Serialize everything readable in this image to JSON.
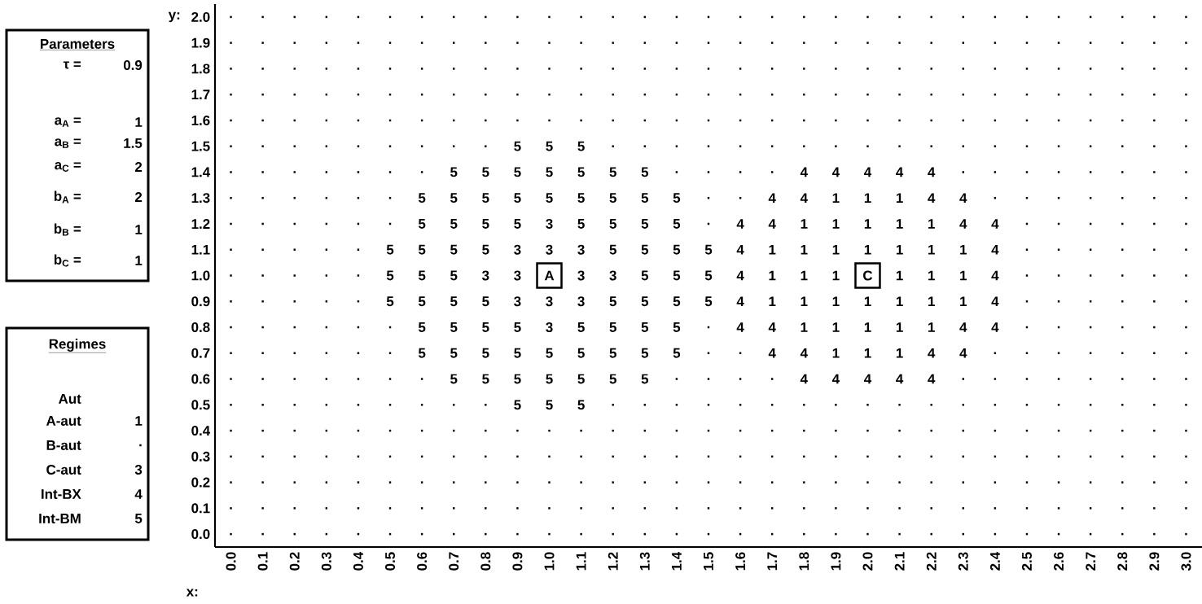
{
  "chart_data": {
    "type": "heatmap",
    "xlabel": "x:",
    "ylabel": "y:",
    "categories": [
      "0.0",
      "0.1",
      "0.2",
      "0.3",
      "0.4",
      "0.5",
      "0.6",
      "0.7",
      "0.8",
      "0.9",
      "1.0",
      "1.1",
      "1.2",
      "1.3",
      "1.4",
      "1.5",
      "1.6",
      "1.7",
      "1.8",
      "1.9",
      "2.0",
      "2.1",
      "2.2",
      "2.3",
      "2.4",
      "2.5",
      "2.6",
      "2.7",
      "2.8",
      "2.9",
      "3.0"
    ],
    "y_categories": [
      "2.0",
      "1.9",
      "1.8",
      "1.7",
      "1.6",
      "1.5",
      "1.4",
      "1.3",
      "1.2",
      "1.1",
      "1.0",
      "0.9",
      "0.8",
      "0.7",
      "0.6",
      "0.5",
      "0.4",
      "0.3",
      "0.2",
      "0.1",
      "0.0"
    ],
    "cells": [
      [
        null,
        null,
        null,
        null,
        null,
        null,
        null,
        null,
        null,
        null,
        null,
        null,
        null,
        null,
        null,
        null,
        null,
        null,
        null,
        null,
        null,
        null,
        null,
        null,
        null,
        null,
        null,
        null,
        null,
        null,
        null
      ],
      [
        null,
        null,
        null,
        null,
        null,
        null,
        null,
        null,
        null,
        null,
        null,
        null,
        null,
        null,
        null,
        null,
        null,
        null,
        null,
        null,
        null,
        null,
        null,
        null,
        null,
        null,
        null,
        null,
        null,
        null,
        null
      ],
      [
        null,
        null,
        null,
        null,
        null,
        null,
        null,
        null,
        null,
        null,
        null,
        null,
        null,
        null,
        null,
        null,
        null,
        null,
        null,
        null,
        null,
        null,
        null,
        null,
        null,
        null,
        null,
        null,
        null,
        null,
        null
      ],
      [
        null,
        null,
        null,
        null,
        null,
        null,
        null,
        null,
        null,
        null,
        null,
        null,
        null,
        null,
        null,
        null,
        null,
        null,
        null,
        null,
        null,
        null,
        null,
        null,
        null,
        null,
        null,
        null,
        null,
        null,
        null
      ],
      [
        null,
        null,
        null,
        null,
        null,
        null,
        null,
        null,
        null,
        null,
        null,
        null,
        null,
        null,
        null,
        null,
        null,
        null,
        null,
        null,
        null,
        null,
        null,
        null,
        null,
        null,
        null,
        null,
        null,
        null,
        null
      ],
      [
        null,
        null,
        null,
        null,
        null,
        null,
        null,
        null,
        null,
        5,
        5,
        5,
        null,
        null,
        null,
        null,
        null,
        null,
        null,
        null,
        null,
        null,
        null,
        null,
        null,
        null,
        null,
        null,
        null,
        null,
        null
      ],
      [
        null,
        null,
        null,
        null,
        null,
        null,
        null,
        5,
        5,
        5,
        5,
        5,
        5,
        5,
        null,
        null,
        null,
        null,
        4,
        4,
        4,
        4,
        4,
        null,
        null,
        null,
        null,
        null,
        null,
        null,
        null
      ],
      [
        null,
        null,
        null,
        null,
        null,
        null,
        5,
        5,
        5,
        5,
        5,
        5,
        5,
        5,
        5,
        null,
        null,
        4,
        4,
        1,
        1,
        1,
        4,
        4,
        null,
        null,
        null,
        null,
        null,
        null,
        null
      ],
      [
        null,
        null,
        null,
        null,
        null,
        null,
        5,
        5,
        5,
        5,
        3,
        5,
        5,
        5,
        5,
        null,
        4,
        4,
        1,
        1,
        1,
        1,
        1,
        4,
        4,
        null,
        null,
        null,
        null,
        null,
        null
      ],
      [
        null,
        null,
        null,
        null,
        null,
        5,
        5,
        5,
        5,
        3,
        3,
        3,
        5,
        5,
        5,
        5,
        4,
        1,
        1,
        1,
        1,
        1,
        1,
        1,
        4,
        null,
        null,
        null,
        null,
        null,
        null
      ],
      [
        null,
        null,
        null,
        null,
        null,
        5,
        5,
        5,
        3,
        3,
        null,
        3,
        3,
        5,
        5,
        5,
        4,
        1,
        1,
        1,
        null,
        1,
        1,
        1,
        4,
        null,
        null,
        null,
        null,
        null,
        null
      ],
      [
        null,
        null,
        null,
        null,
        null,
        5,
        5,
        5,
        5,
        3,
        3,
        3,
        5,
        5,
        5,
        5,
        4,
        1,
        1,
        1,
        1,
        1,
        1,
        1,
        4,
        null,
        null,
        null,
        null,
        null,
        null
      ],
      [
        null,
        null,
        null,
        null,
        null,
        null,
        5,
        5,
        5,
        5,
        3,
        5,
        5,
        5,
        5,
        null,
        4,
        4,
        1,
        1,
        1,
        1,
        1,
        4,
        4,
        null,
        null,
        null,
        null,
        null,
        null
      ],
      [
        null,
        null,
        null,
        null,
        null,
        null,
        5,
        5,
        5,
        5,
        5,
        5,
        5,
        5,
        5,
        null,
        null,
        4,
        4,
        1,
        1,
        1,
        4,
        4,
        null,
        null,
        null,
        null,
        null,
        null,
        null
      ],
      [
        null,
        null,
        null,
        null,
        null,
        null,
        null,
        5,
        5,
        5,
        5,
        5,
        5,
        5,
        null,
        null,
        null,
        null,
        4,
        4,
        4,
        4,
        4,
        null,
        null,
        null,
        null,
        null,
        null,
        null,
        null
      ],
      [
        null,
        null,
        null,
        null,
        null,
        null,
        null,
        null,
        null,
        5,
        5,
        5,
        null,
        null,
        null,
        null,
        null,
        null,
        null,
        null,
        null,
        null,
        null,
        null,
        null,
        null,
        null,
        null,
        null,
        null,
        null
      ],
      [
        null,
        null,
        null,
        null,
        null,
        null,
        null,
        null,
        null,
        null,
        null,
        null,
        null,
        null,
        null,
        null,
        null,
        null,
        null,
        null,
        null,
        null,
        null,
        null,
        null,
        null,
        null,
        null,
        null,
        null,
        null
      ],
      [
        null,
        null,
        null,
        null,
        null,
        null,
        null,
        null,
        null,
        null,
        null,
        null,
        null,
        null,
        null,
        null,
        null,
        null,
        null,
        null,
        null,
        null,
        null,
        null,
        null,
        null,
        null,
        null,
        null,
        null,
        null
      ],
      [
        null,
        null,
        null,
        null,
        null,
        null,
        null,
        null,
        null,
        null,
        null,
        null,
        null,
        null,
        null,
        null,
        null,
        null,
        null,
        null,
        null,
        null,
        null,
        null,
        null,
        null,
        null,
        null,
        null,
        null,
        null
      ],
      [
        null,
        null,
        null,
        null,
        null,
        null,
        null,
        null,
        null,
        null,
        null,
        null,
        null,
        null,
        null,
        null,
        null,
        null,
        null,
        null,
        null,
        null,
        null,
        null,
        null,
        null,
        null,
        null,
        null,
        null,
        null
      ],
      [
        null,
        null,
        null,
        null,
        null,
        null,
        null,
        null,
        null,
        null,
        null,
        null,
        null,
        null,
        null,
        null,
        null,
        null,
        null,
        null,
        null,
        null,
        null,
        null,
        null,
        null,
        null,
        null,
        null,
        null,
        null
      ]
    ],
    "cell_labels": [
      [
        ".",
        ".",
        ".",
        ".",
        ".",
        ".",
        ".",
        ".",
        ".",
        ".",
        ".",
        ".",
        ".",
        ".",
        ".",
        ".",
        ".",
        ".",
        ".",
        ".",
        ".",
        ".",
        ".",
        ".",
        ".",
        ".",
        ".",
        ".",
        ".",
        ".",
        "."
      ],
      [
        ".",
        ".",
        ".",
        ".",
        ".",
        ".",
        ".",
        ".",
        ".",
        ".",
        ".",
        ".",
        ".",
        ".",
        ".",
        ".",
        ".",
        ".",
        ".",
        ".",
        ".",
        ".",
        ".",
        ".",
        ".",
        ".",
        ".",
        ".",
        ".",
        ".",
        "."
      ],
      [
        ".",
        ".",
        ".",
        ".",
        ".",
        ".",
        ".",
        ".",
        ".",
        ".",
        ".",
        ".",
        ".",
        ".",
        ".",
        ".",
        ".",
        ".",
        ".",
        ".",
        ".",
        ".",
        ".",
        ".",
        ".",
        ".",
        ".",
        ".",
        ".",
        ".",
        "."
      ],
      [
        ".",
        ".",
        ".",
        ".",
        ".",
        ".",
        ".",
        ".",
        ".",
        ".",
        ".",
        ".",
        ".",
        ".",
        ".",
        ".",
        ".",
        ".",
        ".",
        ".",
        ".",
        ".",
        ".",
        ".",
        ".",
        ".",
        ".",
        ".",
        ".",
        ".",
        "."
      ],
      [
        ".",
        ".",
        ".",
        ".",
        ".",
        ".",
        ".",
        ".",
        ".",
        ".",
        ".",
        ".",
        ".",
        ".",
        ".",
        ".",
        ".",
        ".",
        ".",
        ".",
        ".",
        ".",
        ".",
        ".",
        ".",
        ".",
        ".",
        ".",
        ".",
        ".",
        "."
      ],
      [
        ".",
        ".",
        ".",
        ".",
        ".",
        ".",
        ".",
        ".",
        ".",
        "5",
        "5",
        "5",
        ".",
        ".",
        ".",
        ".",
        ".",
        ".",
        ".",
        ".",
        ".",
        ".",
        ".",
        ".",
        ".",
        ".",
        ".",
        ".",
        ".",
        ".",
        "."
      ],
      [
        ".",
        ".",
        ".",
        ".",
        ".",
        ".",
        ".",
        "5",
        "5",
        "5",
        "5",
        "5",
        "5",
        "5",
        ".",
        ".",
        ".",
        ".",
        "4",
        "4",
        "4",
        "4",
        "4",
        ".",
        ".",
        ".",
        ".",
        ".",
        ".",
        ".",
        "."
      ],
      [
        ".",
        ".",
        ".",
        ".",
        ".",
        ".",
        "5",
        "5",
        "5",
        "5",
        "5",
        "5",
        "5",
        "5",
        "5",
        ".",
        ".",
        "4",
        "4",
        "1",
        "1",
        "1",
        "4",
        "4",
        ".",
        ".",
        ".",
        ".",
        ".",
        ".",
        "."
      ],
      [
        ".",
        ".",
        ".",
        ".",
        ".",
        ".",
        "5",
        "5",
        "5",
        "5",
        "3",
        "5",
        "5",
        "5",
        "5",
        ".",
        "4",
        "4",
        "1",
        "1",
        "1",
        "1",
        "1",
        "4",
        "4",
        ".",
        ".",
        ".",
        ".",
        ".",
        "."
      ],
      [
        ".",
        ".",
        ".",
        ".",
        ".",
        "5",
        "5",
        "5",
        "5",
        "3",
        "3",
        "3",
        "5",
        "5",
        "5",
        "5",
        "4",
        "1",
        "1",
        "1",
        "1",
        "1",
        "1",
        "1",
        "4",
        ".",
        ".",
        ".",
        ".",
        ".",
        "."
      ],
      [
        ".",
        ".",
        ".",
        ".",
        ".",
        "5",
        "5",
        "5",
        "3",
        "3",
        null,
        "3",
        "3",
        "5",
        "5",
        "5",
        "4",
        "1",
        "1",
        "1",
        null,
        "1",
        "1",
        "1",
        "4",
        ".",
        ".",
        ".",
        ".",
        ".",
        "."
      ],
      [
        ".",
        ".",
        ".",
        ".",
        ".",
        "5",
        "5",
        "5",
        "5",
        "3",
        "3",
        "3",
        "5",
        "5",
        "5",
        "5",
        "4",
        "1",
        "1",
        "1",
        "1",
        "1",
        "1",
        "1",
        "4",
        ".",
        ".",
        ".",
        ".",
        ".",
        "."
      ],
      [
        ".",
        ".",
        ".",
        ".",
        ".",
        ".",
        "5",
        "5",
        "5",
        "5",
        "3",
        "5",
        "5",
        "5",
        "5",
        ".",
        "4",
        "4",
        "1",
        "1",
        "1",
        "1",
        "1",
        "4",
        "4",
        ".",
        ".",
        ".",
        ".",
        ".",
        "."
      ],
      [
        ".",
        ".",
        ".",
        ".",
        ".",
        ".",
        "5",
        "5",
        "5",
        "5",
        "5",
        "5",
        "5",
        "5",
        "5",
        ".",
        ".",
        "4",
        "4",
        "1",
        "1",
        "1",
        "4",
        "4",
        ".",
        ".",
        ".",
        ".",
        ".",
        ".",
        "."
      ],
      [
        ".",
        ".",
        ".",
        ".",
        ".",
        ".",
        ".",
        "5",
        "5",
        "5",
        "5",
        "5",
        "5",
        "5",
        ".",
        ".",
        ".",
        ".",
        "4",
        "4",
        "4",
        "4",
        "4",
        ".",
        ".",
        ".",
        ".",
        ".",
        ".",
        ".",
        "."
      ],
      [
        ".",
        ".",
        ".",
        ".",
        ".",
        ".",
        ".",
        ".",
        ".",
        "5",
        "5",
        "5",
        ".",
        ".",
        ".",
        ".",
        ".",
        ".",
        ".",
        ".",
        ".",
        ".",
        ".",
        ".",
        ".",
        ".",
        ".",
        ".",
        ".",
        ".",
        "."
      ],
      [
        ".",
        ".",
        ".",
        ".",
        ".",
        ".",
        ".",
        ".",
        ".",
        ".",
        ".",
        ".",
        ".",
        ".",
        ".",
        ".",
        ".",
        ".",
        ".",
        ".",
        ".",
        ".",
        ".",
        ".",
        ".",
        ".",
        ".",
        ".",
        ".",
        ".",
        "."
      ],
      [
        ".",
        ".",
        ".",
        ".",
        ".",
        ".",
        ".",
        ".",
        ".",
        ".",
        ".",
        ".",
        ".",
        ".",
        ".",
        ".",
        ".",
        ".",
        ".",
        ".",
        ".",
        ".",
        ".",
        ".",
        ".",
        ".",
        ".",
        ".",
        ".",
        ".",
        "."
      ],
      [
        ".",
        ".",
        ".",
        ".",
        ".",
        ".",
        ".",
        ".",
        ".",
        ".",
        ".",
        ".",
        ".",
        ".",
        ".",
        ".",
        ".",
        ".",
        ".",
        ".",
        ".",
        ".",
        ".",
        ".",
        ".",
        ".",
        ".",
        ".",
        ".",
        ".",
        "."
      ],
      [
        ".",
        ".",
        ".",
        ".",
        ".",
        ".",
        ".",
        ".",
        ".",
        ".",
        ".",
        ".",
        ".",
        ".",
        ".",
        ".",
        ".",
        ".",
        ".",
        ".",
        ".",
        ".",
        ".",
        ".",
        ".",
        ".",
        ".",
        ".",
        ".",
        ".",
        "."
      ],
      [
        ".",
        ".",
        ".",
        ".",
        ".",
        ".",
        ".",
        ".",
        ".",
        ".",
        ".",
        ".",
        ".",
        ".",
        ".",
        ".",
        ".",
        ".",
        ".",
        ".",
        ".",
        ".",
        ".",
        ".",
        ".",
        ".",
        ".",
        ".",
        ".",
        ".",
        "."
      ]
    ],
    "annotations": [
      "Parameters",
      "τ =",
      "0.9",
      "a$_{A}$ =",
      "1",
      "a$_{B}$ =",
      "1.5",
      "a$_{C}$ =",
      "2",
      "b$_{A}$ =",
      "2",
      "b$_{B}$ =",
      "1",
      "b$_{C}$ =",
      "1",
      "Regimes",
      "Aut",
      "A-aut",
      "1",
      "B-aut",
      ".",
      "C-aut",
      "3",
      "Int-BX",
      "4",
      "Int-BM",
      "5",
      {
        "text": "A",
        "x": "1.0",
        "y": "1.0"
      },
      {
        "text": "C",
        "x": "2.0",
        "y": "1.0"
      }
    ]
  }
}
